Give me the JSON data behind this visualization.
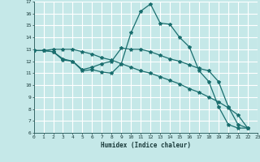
{
  "background_color": "#c5e8e8",
  "grid_color": "#ffffff",
  "line_color": "#1a6e6e",
  "xlabel": "Humidex (Indice chaleur)",
  "xlim": [
    0,
    23
  ],
  "ylim": [
    6,
    17
  ],
  "yticks": [
    6,
    7,
    8,
    9,
    10,
    11,
    12,
    13,
    14,
    15,
    16,
    17
  ],
  "xticks": [
    0,
    1,
    2,
    3,
    4,
    5,
    6,
    7,
    8,
    9,
    10,
    11,
    12,
    13,
    14,
    15,
    16,
    17,
    18,
    19,
    20,
    21,
    22,
    23
  ],
  "series": [
    {
      "x": [
        0,
        1,
        2,
        3,
        4,
        5,
        6,
        7,
        8,
        9,
        10,
        11,
        12,
        13,
        14,
        15,
        16,
        17,
        18,
        19,
        20,
        21,
        22
      ],
      "y": [
        12.9,
        12.9,
        12.8,
        12.1,
        12.0,
        11.2,
        11.3,
        11.1,
        11.0,
        11.8,
        14.4,
        16.2,
        16.8,
        15.2,
        15.1,
        14.0,
        13.2,
        11.2,
        10.3,
        8.2,
        6.7,
        6.4,
        6.4
      ]
    },
    {
      "x": [
        0,
        1,
        2,
        3,
        4,
        5,
        6,
        7,
        8,
        9,
        10,
        11,
        12,
        13,
        14,
        15,
        16,
        17,
        18,
        19,
        20,
        21,
        22
      ],
      "y": [
        12.9,
        12.9,
        12.8,
        12.2,
        12.0,
        11.3,
        11.5,
        11.8,
        12.0,
        13.1,
        13.0,
        13.0,
        12.8,
        12.5,
        12.2,
        12.0,
        11.7,
        11.4,
        11.2,
        10.3,
        8.2,
        6.7,
        6.4
      ]
    },
    {
      "x": [
        0,
        1,
        2,
        3,
        4,
        5,
        6,
        7,
        8,
        9,
        10,
        11,
        12,
        13,
        14,
        15,
        16,
        17,
        18,
        19,
        20,
        21,
        22
      ],
      "y": [
        12.9,
        12.9,
        13.0,
        13.0,
        13.0,
        12.8,
        12.6,
        12.3,
        12.1,
        11.8,
        11.5,
        11.2,
        11.0,
        10.7,
        10.4,
        10.1,
        9.7,
        9.4,
        9.0,
        8.6,
        8.1,
        7.5,
        6.4
      ]
    }
  ]
}
